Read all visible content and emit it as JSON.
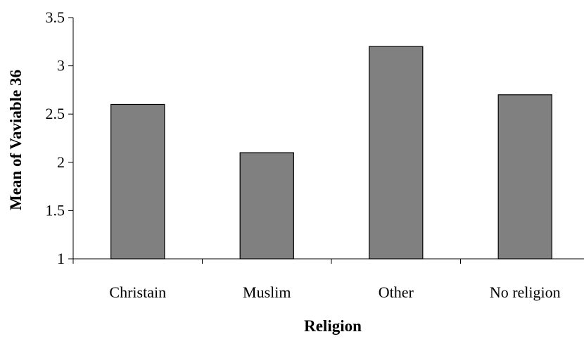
{
  "colors": {
    "bar_fill": "#808080",
    "bar_stroke": "#000000",
    "axis": "#000000",
    "background": "#ffffff"
  },
  "chart_data": {
    "type": "bar",
    "title": "",
    "xlabel": "Religion",
    "ylabel": "Mean of Vaviable 36",
    "categories": [
      "Christain",
      "Muslim",
      "Other",
      "No religion"
    ],
    "values": [
      2.6,
      2.1,
      3.2,
      2.7
    ],
    "ylim": [
      1,
      3.5
    ],
    "yticks": [
      "1",
      "1.5",
      "2",
      "2.5",
      "3",
      "3.5"
    ],
    "grid": false,
    "legend": "none"
  }
}
